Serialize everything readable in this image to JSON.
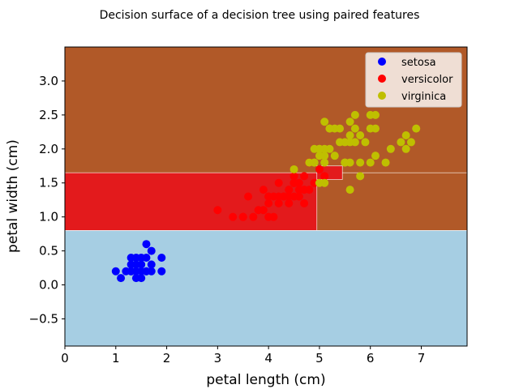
{
  "chart_data": {
    "type": "scatter",
    "title": "Decision surface of a decision tree using paired features",
    "xlabel": "petal length (cm)",
    "ylabel": "petal width (cm)",
    "xlim": [
      0,
      7.9
    ],
    "ylim": [
      -0.9,
      3.5
    ],
    "xticks": [
      0,
      1,
      2,
      3,
      4,
      5,
      6,
      7
    ],
    "xtick_labels": [
      "0",
      "1",
      "2",
      "3",
      "4",
      "5",
      "6",
      "7"
    ],
    "yticks": [
      -0.5,
      0.0,
      0.5,
      1.0,
      1.5,
      2.0,
      2.5,
      3.0
    ],
    "ytick_labels": [
      "−0.5",
      "0.0",
      "0.5",
      "1.0",
      "1.5",
      "2.0",
      "2.5",
      "3.0"
    ],
    "grid": false,
    "legend_position": "top-right",
    "regions": [
      {
        "class": "virginica",
        "color": "#b15928",
        "x": [
          0,
          7.9
        ],
        "y": [
          -0.9,
          3.5
        ]
      },
      {
        "class": "versicolor",
        "color": "#e31a1c",
        "x": [
          0,
          4.95
        ],
        "y": [
          0.8,
          1.65
        ]
      },
      {
        "class": "virginica",
        "color": "#b15928",
        "x": [
          4.95,
          7.9
        ],
        "y": [
          0.8,
          1.65
        ]
      },
      {
        "class": "versicolor",
        "color": "#e31a1c",
        "x": [
          4.95,
          5.45
        ],
        "y": [
          1.55,
          1.75
        ]
      },
      {
        "class": "setosa",
        "color": "#a6cee3",
        "x": [
          0,
          7.9
        ],
        "y": [
          -0.9,
          0.8
        ]
      }
    ],
    "series": [
      {
        "name": "setosa",
        "color": "#0000ff",
        "points": [
          [
            1.4,
            0.2
          ],
          [
            1.3,
            0.2
          ],
          [
            1.5,
            0.2
          ],
          [
            1.4,
            0.4
          ],
          [
            1.4,
            0.3
          ],
          [
            1.5,
            0.1
          ],
          [
            1.6,
            0.2
          ],
          [
            1.4,
            0.1
          ],
          [
            1.1,
            0.1
          ],
          [
            1.2,
            0.2
          ],
          [
            1.3,
            0.4
          ],
          [
            1.7,
            0.3
          ],
          [
            1.5,
            0.3
          ],
          [
            1.7,
            0.2
          ],
          [
            1.5,
            0.4
          ],
          [
            1.0,
            0.2
          ],
          [
            1.7,
            0.5
          ],
          [
            1.9,
            0.2
          ],
          [
            1.6,
            0.4
          ],
          [
            1.6,
            0.6
          ],
          [
            1.9,
            0.4
          ],
          [
            1.3,
            0.3
          ],
          [
            1.6,
            0.2
          ],
          [
            1.3,
            0.2
          ]
        ]
      },
      {
        "name": "versicolor",
        "color": "#ff0000",
        "points": [
          [
            4.7,
            1.4
          ],
          [
            4.5,
            1.5
          ],
          [
            4.9,
            1.5
          ],
          [
            4.0,
            1.3
          ],
          [
            4.6,
            1.5
          ],
          [
            4.5,
            1.3
          ],
          [
            4.7,
            1.6
          ],
          [
            3.3,
            1.0
          ],
          [
            4.6,
            1.3
          ],
          [
            3.9,
            1.4
          ],
          [
            3.5,
            1.0
          ],
          [
            4.2,
            1.5
          ],
          [
            4.0,
            1.0
          ],
          [
            4.7,
            1.4
          ],
          [
            3.6,
            1.3
          ],
          [
            4.4,
            1.4
          ],
          [
            4.5,
            1.5
          ],
          [
            4.1,
            1.0
          ],
          [
            4.5,
            1.5
          ],
          [
            3.9,
            1.1
          ],
          [
            4.8,
            1.8
          ],
          [
            4.0,
            1.3
          ],
          [
            4.9,
            1.5
          ],
          [
            4.7,
            1.2
          ],
          [
            4.3,
            1.3
          ],
          [
            4.4,
            1.4
          ],
          [
            4.8,
            1.4
          ],
          [
            5.0,
            1.7
          ],
          [
            4.5,
            1.5
          ],
          [
            3.8,
            1.1
          ],
          [
            3.7,
            1.0
          ],
          [
            5.1,
            1.6
          ],
          [
            4.5,
            1.6
          ],
          [
            4.4,
            1.3
          ],
          [
            4.1,
            1.3
          ],
          [
            4.0,
            1.2
          ],
          [
            4.4,
            1.2
          ],
          [
            4.6,
            1.4
          ],
          [
            3.0,
            1.1
          ],
          [
            4.2,
            1.3
          ],
          [
            4.2,
            1.2
          ],
          [
            4.3,
            1.3
          ],
          [
            4.6,
            1.3
          ],
          [
            3.5,
            1.0
          ],
          [
            4.8,
            1.8
          ]
        ]
      },
      {
        "name": "virginica",
        "color": "#bfbf00",
        "points": [
          [
            6.0,
            2.5
          ],
          [
            5.1,
            1.9
          ],
          [
            5.9,
            2.1
          ],
          [
            5.6,
            1.8
          ],
          [
            5.8,
            2.2
          ],
          [
            6.6,
            2.1
          ],
          [
            4.5,
            1.7
          ],
          [
            6.3,
            1.8
          ],
          [
            5.8,
            1.8
          ],
          [
            6.1,
            2.5
          ],
          [
            5.1,
            2.0
          ],
          [
            5.3,
            1.9
          ],
          [
            5.5,
            2.1
          ],
          [
            5.0,
            2.0
          ],
          [
            5.1,
            2.4
          ],
          [
            5.3,
            2.3
          ],
          [
            5.5,
            1.8
          ],
          [
            6.7,
            2.2
          ],
          [
            6.9,
            2.3
          ],
          [
            5.0,
            1.5
          ],
          [
            5.7,
            2.3
          ],
          [
            4.9,
            2.0
          ],
          [
            6.7,
            2.0
          ],
          [
            4.9,
            1.8
          ],
          [
            5.7,
            2.1
          ],
          [
            6.0,
            1.8
          ],
          [
            4.8,
            1.8
          ],
          [
            5.6,
            2.1
          ],
          [
            5.8,
            1.6
          ],
          [
            6.1,
            1.9
          ],
          [
            6.4,
            2.0
          ],
          [
            5.6,
            2.2
          ],
          [
            5.1,
            1.5
          ],
          [
            5.6,
            1.4
          ],
          [
            6.1,
            2.3
          ],
          [
            5.6,
            2.4
          ],
          [
            5.4,
            2.3
          ],
          [
            5.2,
            2.3
          ],
          [
            5.0,
            1.9
          ],
          [
            5.2,
            2.0
          ],
          [
            5.4,
            2.1
          ],
          [
            5.1,
            1.8
          ],
          [
            6.0,
            2.3
          ],
          [
            4.9,
            1.8
          ],
          [
            5.7,
            2.5
          ],
          [
            5.5,
            1.8
          ],
          [
            6.8,
            2.1
          ],
          [
            5.2,
            2.3
          ],
          [
            5.0,
            2.0
          ]
        ]
      }
    ]
  }
}
